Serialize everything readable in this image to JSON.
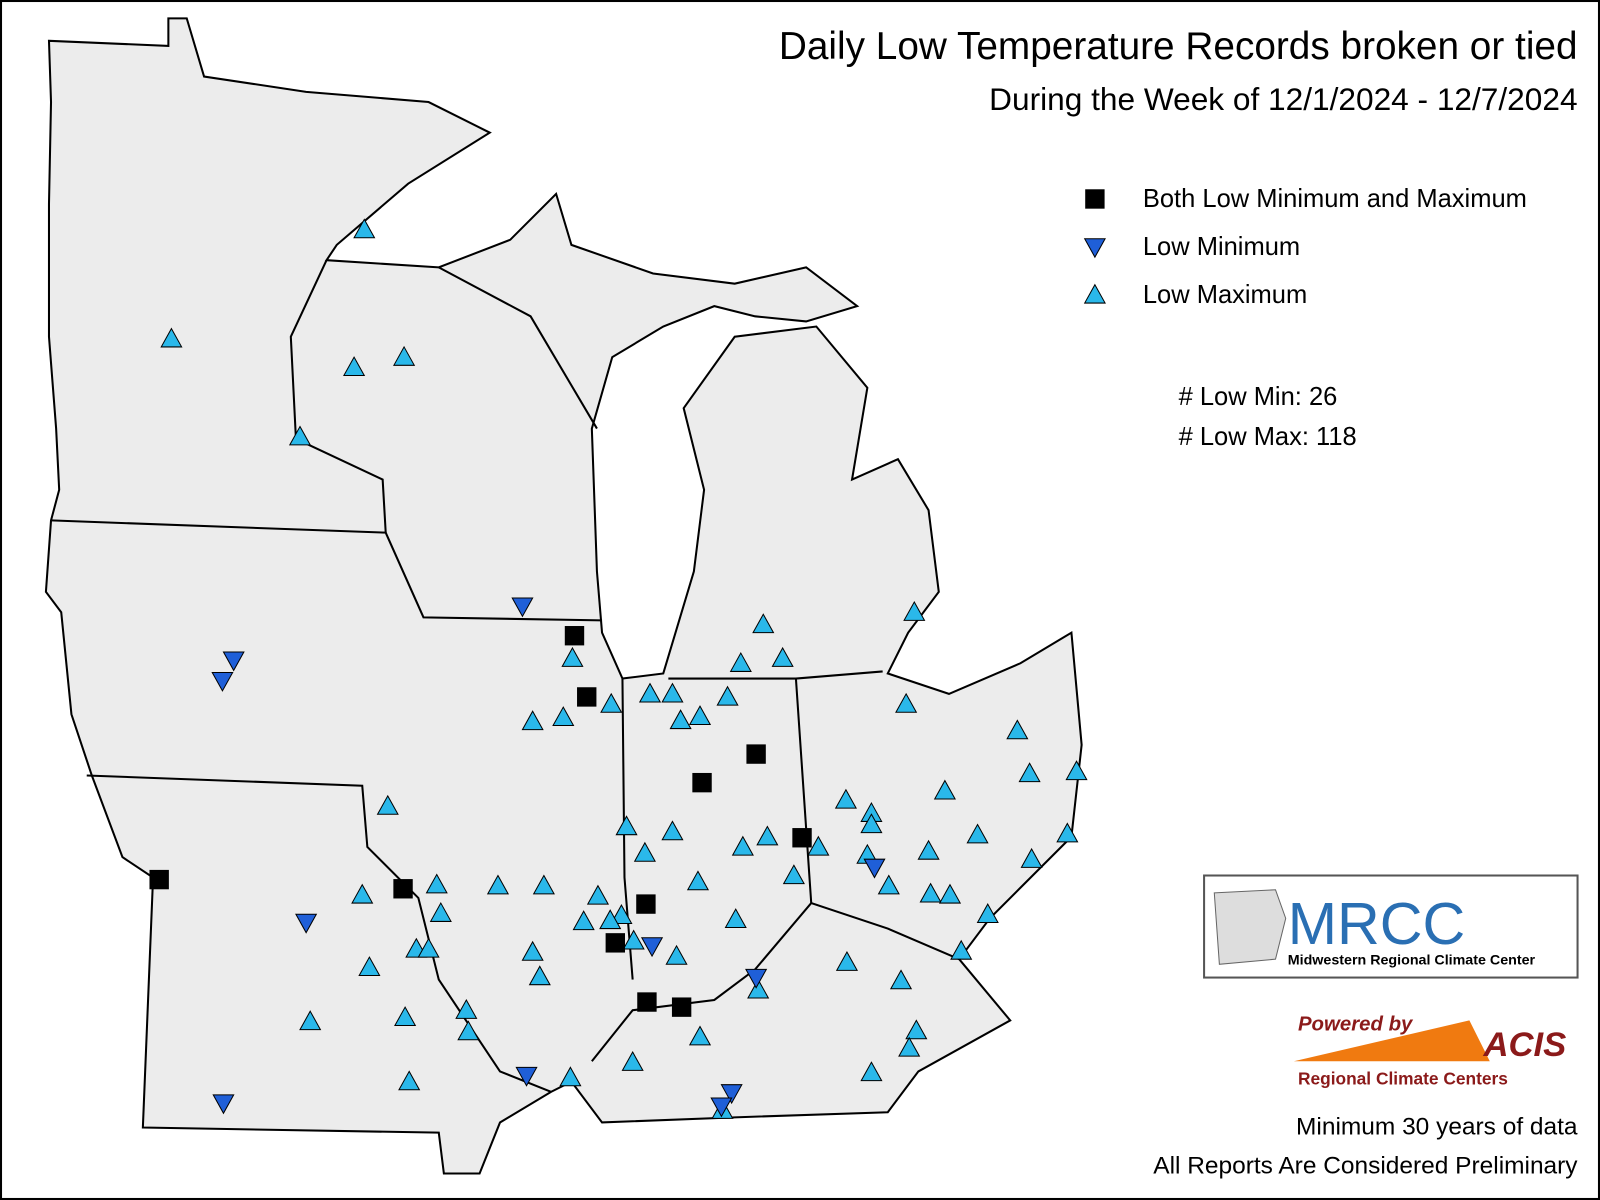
{
  "title": "Daily Low Temperature Records broken or tied",
  "subtitle": "During the Week of 12/1/2024 - 12/7/2024",
  "legend": [
    {
      "label": "Both Low Minimum and Maximum",
      "color": "#000000"
    },
    {
      "label": "Low Minimum",
      "color": "#1f5fd8"
    },
    {
      "label": "Low Maximum",
      "color": "#2ab8ea"
    }
  ],
  "counts": [
    {
      "label": "# Low Min:",
      "value": 26
    },
    {
      "label": "# Low Max:",
      "value": 118
    }
  ],
  "logos": {
    "mrcc": "MRCC",
    "mrcc_name": "Midwestern Regional Climate Center",
    "powered_by": "Powered by",
    "acis": "ACIS",
    "rcc": "Regional Climate Centers"
  },
  "notes": [
    "Minimum 30 years of data",
    "All Reports Are Considered Preliminary"
  ]
}
